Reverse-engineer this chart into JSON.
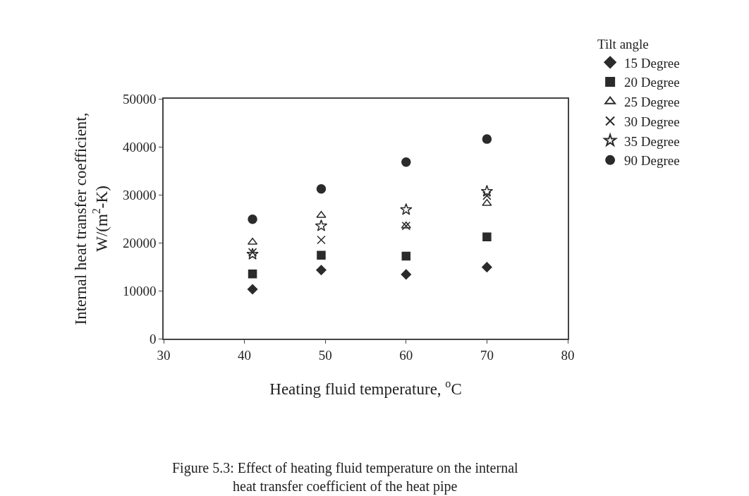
{
  "chart_data": {
    "type": "scatter",
    "xlabel": "Heating fluid temperature, $^{o}$C",
    "ylabel": "Internal heat transfer coefficient,\nW/(m$^{2}$-K)",
    "legend_title": "Tilt angle",
    "legend": "top right",
    "grid": false,
    "x": [
      41,
      49.5,
      60,
      70
    ],
    "xlim": [
      30,
      80
    ],
    "xticks": [
      30,
      40,
      50,
      60,
      70,
      80
    ],
    "ylim": [
      0,
      50000
    ],
    "yticks": [
      0,
      10000,
      20000,
      30000,
      40000,
      50000
    ],
    "series": [
      {
        "name": "15 Degree",
        "color": "#2b2b2b",
        "marker": "diamond",
        "values": [
          10300,
          14300,
          13400,
          14900
        ]
      },
      {
        "name": "20 Degree",
        "color": "#2b2b2b",
        "marker": "square",
        "values": [
          13500,
          17400,
          17200,
          21200
        ]
      },
      {
        "name": "25 Degree",
        "color": "#2b2b2b",
        "marker": "triangle",
        "values": [
          20100,
          25700,
          23500,
          28200
        ]
      },
      {
        "name": "30 Degree",
        "color": "#2b2b2b",
        "marker": "cross",
        "values": [
          18000,
          20600,
          23500,
          29800
        ]
      },
      {
        "name": "35 Degree",
        "color": "#2b2b2b",
        "marker": "star",
        "values": [
          17600,
          23500,
          26900,
          30700
        ]
      },
      {
        "name": "90 Degree",
        "color": "#2b2b2b",
        "marker": "circle",
        "values": [
          24900,
          31200,
          36800,
          41600
        ]
      }
    ],
    "annotations": [
      "Figure 5.3: Effect of heating fluid temperature on the internal\nheat transfer coefficient of the heat pipe"
    ]
  }
}
